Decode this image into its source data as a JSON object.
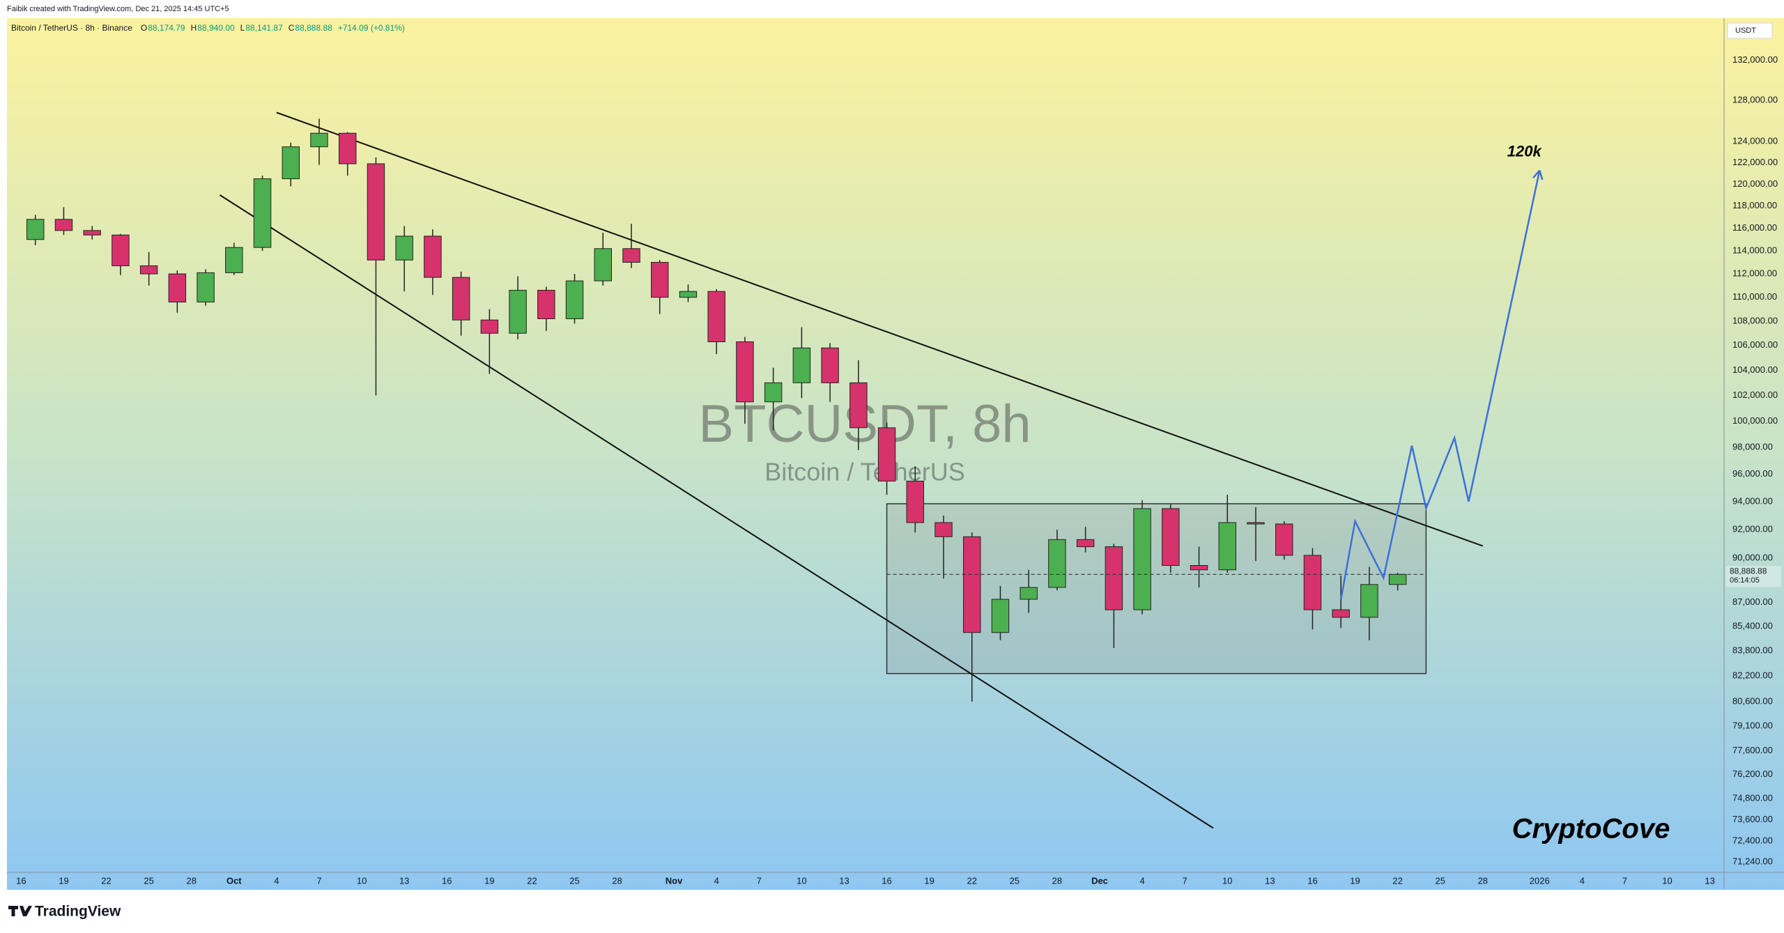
{
  "header": {
    "credit": "Faibik created with TradingView.com, Dec 21, 2025 14:45 UTC+5",
    "symbol": "Bitcoin / TetherUS · 8h · Binance",
    "ohlc": [
      {
        "key": "O",
        "value": "88,174.79"
      },
      {
        "key": "H",
        "value": "88,940.00"
      },
      {
        "key": "L",
        "value": "88,141.87"
      },
      {
        "key": "C",
        "value": "88,888.88"
      }
    ],
    "change": "+714.09 (+0.81%)"
  },
  "footer": {
    "brand": "TradingView"
  },
  "chart_data": {
    "type": "candlestick",
    "x": [
      "2025-09-16",
      "2025-09-18",
      "2025-09-20",
      "2025-09-22",
      "2025-09-24",
      "2025-09-26",
      "2025-09-28",
      "2025-09-30",
      "2025-10-02",
      "2025-10-04",
      "2025-10-06",
      "2025-10-08",
      "2025-10-10",
      "2025-10-12",
      "2025-10-14",
      "2025-10-16",
      "2025-10-18",
      "2025-10-20",
      "2025-10-22",
      "2025-10-24",
      "2025-10-26",
      "2025-10-28",
      "2025-10-30",
      "2025-11-01",
      "2025-11-03",
      "2025-11-05",
      "2025-11-07",
      "2025-11-09",
      "2025-11-11",
      "2025-11-13",
      "2025-11-15",
      "2025-11-17",
      "2025-11-19",
      "2025-11-21",
      "2025-11-23",
      "2025-11-25",
      "2025-11-27",
      "2025-11-29",
      "2025-12-01",
      "2025-12-03",
      "2025-12-05",
      "2025-12-07",
      "2025-12-09",
      "2025-12-11",
      "2025-12-13",
      "2025-12-15",
      "2025-12-17",
      "2025-12-19",
      "2025-12-21"
    ],
    "open": [
      115000,
      116800,
      115800,
      115400,
      112700,
      112000,
      109600,
      112100,
      114300,
      120500,
      123500,
      124800,
      121900,
      113200,
      115300,
      111700,
      108100,
      107000,
      110600,
      108200,
      111400,
      114200,
      113000,
      110000,
      110500,
      106300,
      101500,
      103000,
      105800,
      103000,
      99500,
      95500,
      92500,
      91500,
      85000,
      87200,
      88000,
      91300,
      90800,
      86500,
      93500,
      89500,
      89200,
      92500,
      92400,
      90200,
      86500,
      86000,
      88200
    ],
    "high": [
      117200,
      117900,
      116200,
      115500,
      113900,
      112300,
      112400,
      114700,
      120800,
      123900,
      126200,
      124900,
      122500,
      116200,
      115900,
      112200,
      109000,
      111800,
      110900,
      112000,
      115600,
      116400,
      113200,
      111100,
      110700,
      106700,
      104200,
      107500,
      106200,
      104800,
      99900,
      96600,
      93000,
      91800,
      88100,
      89200,
      92000,
      92200,
      91000,
      94100,
      93800,
      90800,
      94500,
      93600,
      92600,
      90700,
      88800,
      89400,
      89000
    ],
    "low": [
      114500,
      115400,
      115000,
      111900,
      111000,
      108700,
      109300,
      111900,
      114000,
      119800,
      121800,
      120800,
      102000,
      110500,
      110200,
      106800,
      103700,
      106500,
      107200,
      107800,
      111000,
      112500,
      108600,
      109600,
      105300,
      99800,
      99300,
      101800,
      101500,
      97800,
      94500,
      91800,
      88600,
      80600,
      84500,
      86300,
      87800,
      90400,
      84000,
      86200,
      89000,
      88000,
      89000,
      89800,
      89900,
      85200,
      85300,
      84500,
      87800
    ],
    "close": [
      116800,
      115800,
      115400,
      112700,
      112000,
      109600,
      112100,
      114300,
      120500,
      123500,
      124800,
      121900,
      113200,
      115300,
      111700,
      108100,
      107000,
      110600,
      108200,
      111400,
      114200,
      113000,
      110000,
      110500,
      106300,
      101500,
      103000,
      105800,
      103000,
      99500,
      95500,
      92500,
      91500,
      85000,
      87200,
      88000,
      91300,
      90800,
      86500,
      93500,
      89500,
      89200,
      92500,
      92400,
      90200,
      86500,
      86000,
      88200,
      88888.88
    ],
    "up_color": "#4caf50",
    "down_color": "#d6336c",
    "log_scale": true,
    "ylim": [
      70680,
      136350
    ],
    "yticks": [
      {
        "value": 132000,
        "label": "132,000.00"
      },
      {
        "value": 128000,
        "label": "128,000.00"
      },
      {
        "value": 124000,
        "label": "124,000.00"
      },
      {
        "value": 122000,
        "label": "122,000.00"
      },
      {
        "value": 120000,
        "label": "120,000.00"
      },
      {
        "value": 118000,
        "label": "118,000.00"
      },
      {
        "value": 116000,
        "label": "116,000.00"
      },
      {
        "value": 114000,
        "label": "114,000.00"
      },
      {
        "value": 112000,
        "label": "112,000.00"
      },
      {
        "value": 110000,
        "label": "110,000.00"
      },
      {
        "value": 108000,
        "label": "108,000.00"
      },
      {
        "value": 106000,
        "label": "106,000.00"
      },
      {
        "value": 104000,
        "label": "104,000.00"
      },
      {
        "value": 102000,
        "label": "102,000.00"
      },
      {
        "value": 100000,
        "label": "100,000.00"
      },
      {
        "value": 98000,
        "label": "98,000.00"
      },
      {
        "value": 96000,
        "label": "96,000.00"
      },
      {
        "value": 94000,
        "label": "94,000.00"
      },
      {
        "value": 92000,
        "label": "92,000.00"
      },
      {
        "value": 90000,
        "label": "90,000.00"
      },
      {
        "value": 87000,
        "label": "87,000.00"
      },
      {
        "value": 85400,
        "label": "85,400.00"
      },
      {
        "value": 83800,
        "label": "83,800.00"
      },
      {
        "value": 82200,
        "label": "82,200.00"
      },
      {
        "value": 80600,
        "label": "80,600.00"
      },
      {
        "value": 79100,
        "label": "79,100.00"
      },
      {
        "value": 77600,
        "label": "77,600.00"
      },
      {
        "value": 76200,
        "label": "76,200.00"
      },
      {
        "value": 74800,
        "label": "74,800.00"
      },
      {
        "value": 73600,
        "label": "73,600.00"
      },
      {
        "value": 72400,
        "label": "72,400.00"
      },
      {
        "value": 71240,
        "label": "71,240.00"
      }
    ],
    "axis_unit": "USDT",
    "xlim": [
      "2025-09-15",
      "2026-01-14"
    ],
    "xticks": [
      {
        "value": "2025-09-16",
        "label": "16"
      },
      {
        "value": "2025-09-19",
        "label": "19"
      },
      {
        "value": "2025-09-22",
        "label": "22"
      },
      {
        "value": "2025-09-25",
        "label": "25"
      },
      {
        "value": "2025-09-28",
        "label": "28"
      },
      {
        "value": "2025-10-01",
        "label": "Oct"
      },
      {
        "value": "2025-10-04",
        "label": "4"
      },
      {
        "value": "2025-10-07",
        "label": "7"
      },
      {
        "value": "2025-10-10",
        "label": "10"
      },
      {
        "value": "2025-10-13",
        "label": "13"
      },
      {
        "value": "2025-10-16",
        "label": "16"
      },
      {
        "value": "2025-10-19",
        "label": "19"
      },
      {
        "value": "2025-10-22",
        "label": "22"
      },
      {
        "value": "2025-10-25",
        "label": "25"
      },
      {
        "value": "2025-10-28",
        "label": "28"
      },
      {
        "value": "2025-11-01",
        "label": "Nov"
      },
      {
        "value": "2025-11-04",
        "label": "4"
      },
      {
        "value": "2025-11-07",
        "label": "7"
      },
      {
        "value": "2025-11-10",
        "label": "10"
      },
      {
        "value": "2025-11-13",
        "label": "13"
      },
      {
        "value": "2025-11-16",
        "label": "16"
      },
      {
        "value": "2025-11-19",
        "label": "19"
      },
      {
        "value": "2025-11-22",
        "label": "22"
      },
      {
        "value": "2025-11-25",
        "label": "25"
      },
      {
        "value": "2025-11-28",
        "label": "28"
      },
      {
        "value": "2025-12-01",
        "label": "Dec"
      },
      {
        "value": "2025-12-04",
        "label": "4"
      },
      {
        "value": "2025-12-07",
        "label": "7"
      },
      {
        "value": "2025-12-10",
        "label": "10"
      },
      {
        "value": "2025-12-13",
        "label": "13"
      },
      {
        "value": "2025-12-16",
        "label": "16"
      },
      {
        "value": "2025-12-19",
        "label": "19"
      },
      {
        "value": "2025-12-22",
        "label": "22"
      },
      {
        "value": "2025-12-25",
        "label": "25"
      },
      {
        "value": "2025-12-28",
        "label": "28"
      },
      {
        "value": "2026-01-01",
        "label": "2026"
      },
      {
        "value": "2026-01-04",
        "label": "4"
      },
      {
        "value": "2026-01-07",
        "label": "7"
      },
      {
        "value": "2026-01-10",
        "label": "10"
      },
      {
        "value": "2026-01-13",
        "label": "13"
      }
    ],
    "last_price_label": "88,888.88",
    "countdown": "06:14:05",
    "watermark": {
      "title": "BTCUSDT, 8h",
      "subtitle": "Bitcoin / TetherUS"
    },
    "drawings": {
      "trendlines": [
        {
          "x": [
            "2025-10-04",
            "2025-12-28"
          ],
          "y": [
            126800,
            90850
          ]
        },
        {
          "x": [
            "2025-09-30",
            "2025-12-09"
          ],
          "y": [
            119000,
            73130
          ]
        }
      ],
      "range_box": {
        "x": [
          "2025-11-16",
          "2025-12-24"
        ],
        "y": [
          93850,
          82360
        ]
      },
      "projection": {
        "x": [
          "2025-12-18",
          "2025-12-19",
          "2025-12-21",
          "2025-12-23",
          "2025-12-24",
          "2025-12-26",
          "2025-12-27",
          "2026-01-01"
        ],
        "y": [
          87200,
          92600,
          88650,
          98130,
          93520,
          98730,
          94010,
          121280
        ],
        "color": "#3d6fd9",
        "label": "120k"
      }
    },
    "annotation": "CryptoCove"
  }
}
